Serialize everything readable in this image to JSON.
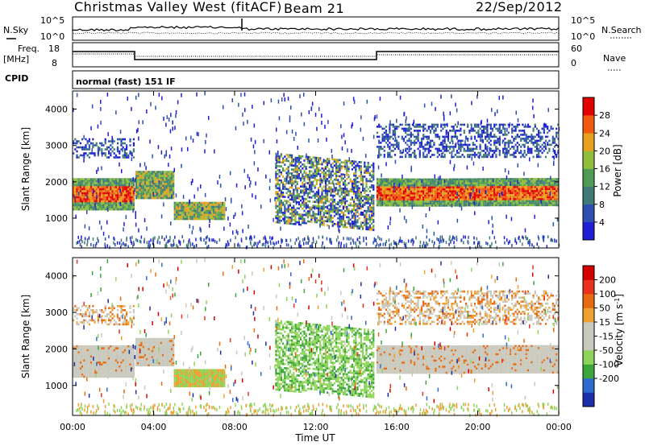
{
  "header": {
    "station": "Christmas Valley West (fitACF)",
    "beam": "Beam 21",
    "date": "22/Sep/2012"
  },
  "strips": {
    "nsky_label": "N.Sky",
    "nsky_ticks": [
      "10^5",
      "10^0"
    ],
    "nsearch_label": "N.Search",
    "nsearch_ticks": [
      "10^5",
      "10^0"
    ],
    "freq_label_1": "Freq.",
    "freq_label_2": "[MHz]",
    "freq_ticks": [
      "18",
      "8"
    ],
    "nave_label": "Nave",
    "nave_ticks": [
      "60",
      "0"
    ],
    "cpid_label": "CPID",
    "cpid_text": "normal (fast) 151 IF"
  },
  "colors": {
    "power_scale": [
      "#1e1ed2",
      "#2d4fb0",
      "#3f7a76",
      "#4f9b56",
      "#8fbf3a",
      "#e6a11e",
      "#f25a10",
      "#e00000"
    ],
    "velocity_scale": [
      "#1a2ea8",
      "#2f6bcf",
      "#3ca63c",
      "#8fd45a",
      "#c8c8bc",
      "#c8c8bc",
      "#f0a030",
      "#e86a10",
      "#e8321e",
      "#d40000"
    ]
  },
  "chart_data": [
    {
      "type": "heatmap",
      "panel": "power",
      "ylabel": "Slant Range [km]",
      "ylim": [
        180,
        4500
      ],
      "yticks": [
        1000,
        2000,
        3000,
        4000
      ],
      "xlim_hours": [
        0,
        24
      ],
      "colorbar_label": "Power [dB]",
      "colorbar_ticks": [
        4,
        8,
        12,
        16,
        20,
        24,
        28
      ],
      "colorbar_range": [
        0,
        32
      ],
      "echo_bands": [
        {
          "t0": 0.0,
          "t1": 3.0,
          "r_top": 2100,
          "r_bot": 1250,
          "level": "high"
        },
        {
          "t0": 3.1,
          "t1": 5.0,
          "r_top": 2300,
          "r_bot": 1550,
          "level": "mid"
        },
        {
          "t0": 5.0,
          "t1": 7.5,
          "r_top": 1450,
          "r_bot": 1000,
          "level": "mid"
        },
        {
          "t0": 10.0,
          "t1": 14.9,
          "r_top": 2800,
          "r_bot": 900,
          "level": "mixed"
        },
        {
          "t0": 15.0,
          "t1": 24.0,
          "r_top": 2100,
          "r_bot": 1350,
          "level": "high"
        },
        {
          "t0": 0.0,
          "t1": 3.0,
          "r_top": 3200,
          "r_bot": 2700,
          "level": "low"
        },
        {
          "t0": 15.0,
          "t1": 24.0,
          "r_top": 3600,
          "r_bot": 2700,
          "level": "low"
        }
      ]
    },
    {
      "type": "heatmap",
      "panel": "velocity",
      "ylabel": "Slant Range [km]",
      "ylim": [
        180,
        4500
      ],
      "yticks": [
        1000,
        2000,
        3000,
        4000
      ],
      "xlim_hours": [
        0,
        24
      ],
      "xticks": [
        "00:00",
        "04:00",
        "08:00",
        "12:00",
        "16:00",
        "20:00",
        "00:00"
      ],
      "xlabel": "Time UT",
      "colorbar_label": "Velocity [m s^-1]",
      "colorbar_ticks": [
        200,
        100,
        50,
        15,
        -15,
        -50,
        -100,
        -200
      ]
    }
  ]
}
